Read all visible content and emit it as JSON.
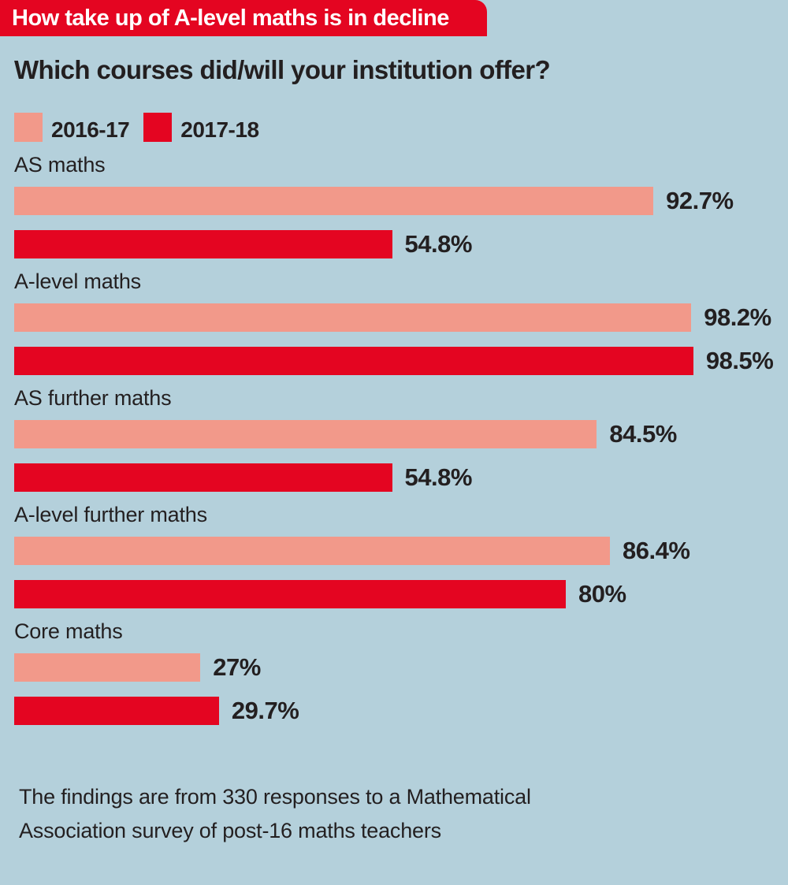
{
  "banner": {
    "text": "How take up of A-level maths is in decline",
    "bg_color": "#e40521",
    "text_color": "#ffffff"
  },
  "title": "Which courses did/will your institution offer?",
  "legend": [
    {
      "label": "2016-17",
      "color": "#f2998a"
    },
    {
      "label": "2017-18",
      "color": "#e40521"
    }
  ],
  "chart_data": {
    "type": "bar",
    "orientation": "horizontal",
    "title": "Which courses did/will your institution offer?",
    "xlabel": "",
    "ylabel": "",
    "xlim": [
      0,
      100
    ],
    "grid": false,
    "legend_position": "top-left",
    "categories": [
      "AS maths",
      "A-level maths",
      "AS further maths",
      "A-level further maths",
      "Core maths"
    ],
    "series": [
      {
        "name": "2016-17",
        "color": "#f2998a",
        "values": [
          92.7,
          98.2,
          84.5,
          86.4,
          27
        ]
      },
      {
        "name": "2017-18",
        "color": "#e40521",
        "values": [
          54.8,
          98.5,
          54.8,
          80,
          29.7
        ]
      }
    ],
    "value_labels": [
      [
        "92.7%",
        "54.8%"
      ],
      [
        "98.2%",
        "98.5%"
      ],
      [
        "84.5%",
        "54.8%"
      ],
      [
        "86.4%",
        "80%"
      ],
      [
        "27%",
        "29.7%"
      ]
    ]
  },
  "footnote": {
    "line1": "The findings are from 330 responses to a Mathematical",
    "line2": "Association survey of post-16 maths teachers"
  },
  "colors": {
    "background": "#b4d0db",
    "text": "#231f20",
    "series_2016_17": "#f2998a",
    "series_2017_18": "#e40521"
  }
}
